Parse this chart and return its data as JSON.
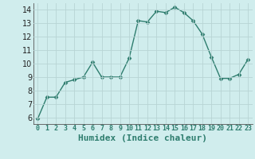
{
  "x": [
    0,
    1,
    2,
    3,
    4,
    5,
    6,
    7,
    8,
    9,
    10,
    11,
    12,
    13,
    14,
    15,
    16,
    17,
    18,
    19,
    20,
    21,
    22,
    23
  ],
  "y": [
    5.9,
    7.5,
    7.5,
    8.6,
    8.8,
    9.0,
    10.1,
    9.0,
    9.0,
    9.0,
    10.4,
    13.2,
    13.1,
    13.9,
    13.8,
    14.2,
    13.8,
    13.2,
    12.2,
    10.5,
    8.9,
    8.9,
    9.2,
    10.3
  ],
  "line_color": "#2e7d6e",
  "marker": "D",
  "marker_size": 2.5,
  "bg_color": "#d0eded",
  "grid_color": "#b8d4d4",
  "xlabel": "Humidex (Indice chaleur)",
  "xlabel_fontsize": 8,
  "ylim": [
    5.5,
    14.5
  ],
  "xlim": [
    -0.5,
    23.5
  ],
  "yticks": [
    6,
    7,
    8,
    9,
    10,
    11,
    12,
    13,
    14
  ],
  "xticks": [
    0,
    1,
    2,
    3,
    4,
    5,
    6,
    7,
    8,
    9,
    10,
    11,
    12,
    13,
    14,
    15,
    16,
    17,
    18,
    19,
    20,
    21,
    22,
    23
  ],
  "tick_fontsize": 7,
  "line_width": 1.0
}
